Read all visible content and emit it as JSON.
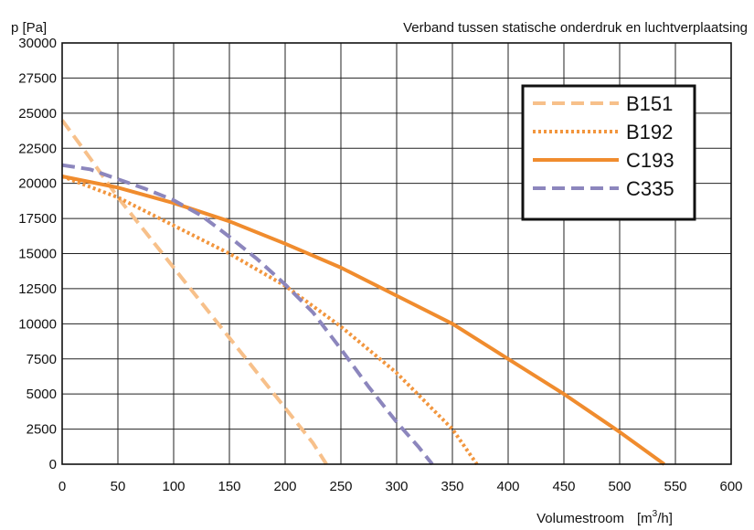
{
  "chart_data": {
    "type": "line",
    "title": "Verband tussen statische onderdruk en luchtverplaatsing",
    "ylabel": "p [Pa]",
    "xlabel": "Volumestroom",
    "xlabel_unit": "[m3/h]",
    "xlim": [
      0,
      600
    ],
    "ylim": [
      0,
      30000
    ],
    "x_ticks": [
      0,
      50,
      100,
      150,
      200,
      250,
      300,
      350,
      400,
      450,
      500,
      550,
      600
    ],
    "y_ticks": [
      0,
      2500,
      5000,
      7500,
      10000,
      12500,
      15000,
      17500,
      20000,
      22500,
      25000,
      27500,
      30000
    ],
    "grid": true,
    "legend_position": "top-right",
    "series": [
      {
        "name": "B151",
        "color": "#f7c08a",
        "dash": "dashed",
        "x": [
          0,
          25,
          50,
          75,
          100,
          125,
          150,
          175,
          200,
          225,
          237
        ],
        "y": [
          24500,
          21800,
          19000,
          16500,
          14000,
          11500,
          9000,
          6500,
          4000,
          1500,
          0
        ]
      },
      {
        "name": "B192",
        "color": "#f2963e",
        "dash": "dotted",
        "x": [
          0,
          50,
          100,
          150,
          200,
          250,
          300,
          350,
          372
        ],
        "y": [
          20500,
          19000,
          17000,
          15000,
          12700,
          9800,
          6500,
          2500,
          0
        ]
      },
      {
        "name": "C193",
        "color": "#f08c2e",
        "dash": "solid",
        "x": [
          0,
          50,
          100,
          150,
          200,
          250,
          300,
          350,
          400,
          450,
          500,
          540
        ],
        "y": [
          20500,
          19700,
          18600,
          17300,
          15700,
          14000,
          12000,
          10000,
          7500,
          5000,
          2300,
          0
        ]
      },
      {
        "name": "C335",
        "color": "#8c86bd",
        "dash": "dashed",
        "x": [
          0,
          25,
          50,
          75,
          100,
          125,
          150,
          175,
          200,
          225,
          250,
          275,
          300,
          320,
          332
        ],
        "y": [
          21300,
          21000,
          20300,
          19600,
          18800,
          17700,
          16200,
          14600,
          12800,
          10800,
          8200,
          5500,
          3000,
          1200,
          0
        ]
      }
    ]
  }
}
